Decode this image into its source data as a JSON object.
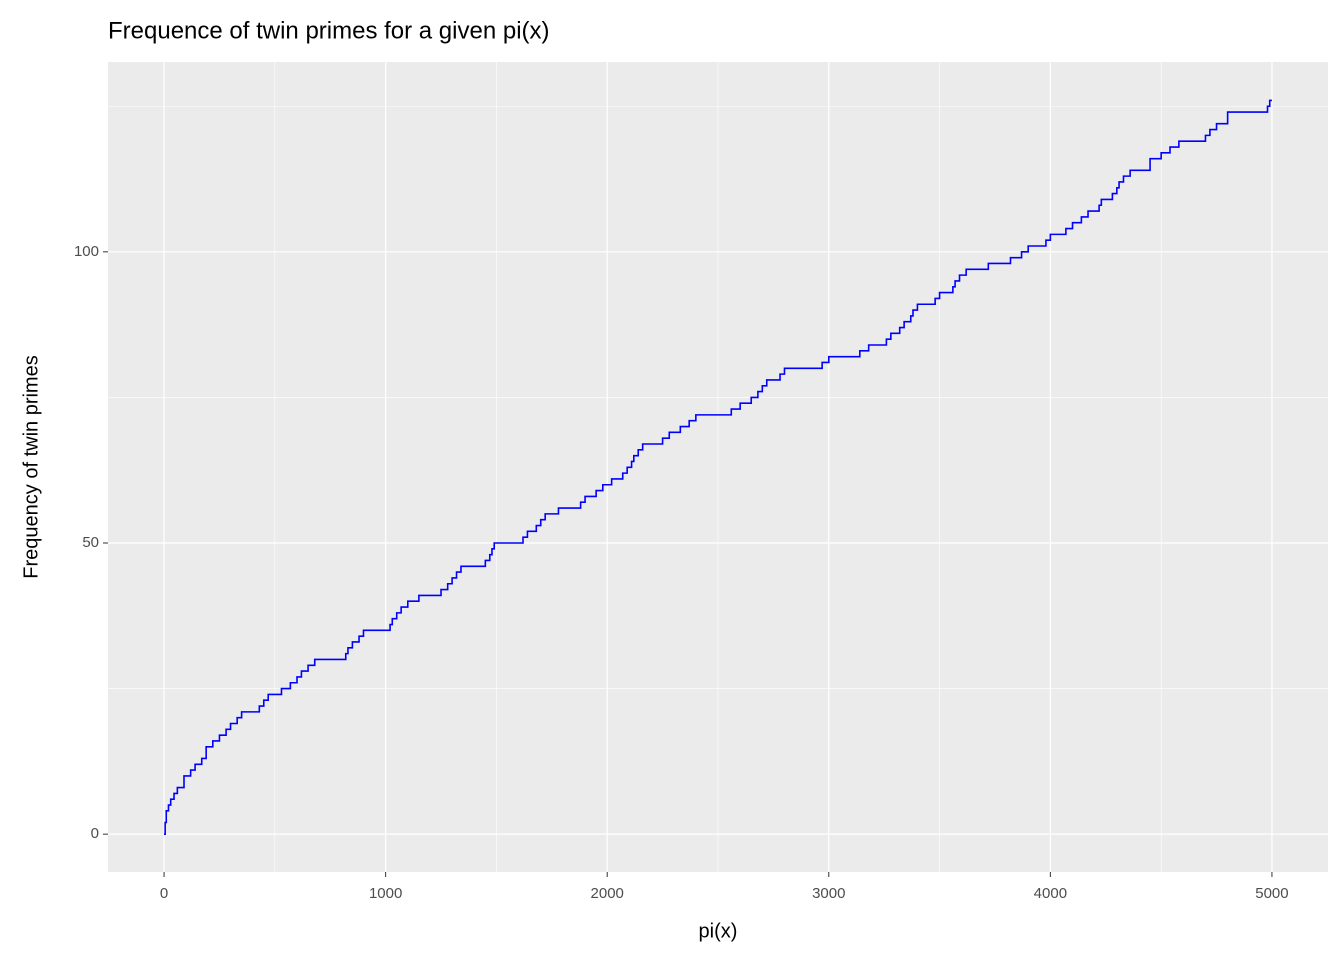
{
  "chart_data": {
    "type": "step",
    "title": "Frequence of twin primes for a given pi(x)",
    "x_label": "pi(x)",
    "y_label": "Frequency of twin primes",
    "series": [
      {
        "name": "twin primes",
        "color": "#0000ff",
        "x": [
          0,
          5,
          10,
          20,
          30,
          45,
          60,
          90,
          120,
          140,
          170,
          190,
          220,
          250,
          280,
          300,
          330,
          350,
          430,
          450,
          470,
          530,
          570,
          600,
          620,
          650,
          680,
          820,
          830,
          850,
          880,
          900,
          1020,
          1030,
          1050,
          1070,
          1100,
          1150,
          1250,
          1280,
          1300,
          1320,
          1340,
          1450,
          1470,
          1480,
          1490,
          1620,
          1640,
          1680,
          1700,
          1720,
          1780,
          1880,
          1900,
          1950,
          1980,
          2020,
          2070,
          2090,
          2110,
          2120,
          2140,
          2160,
          2250,
          2280,
          2330,
          2370,
          2400,
          2560,
          2600,
          2650,
          2680,
          2700,
          2720,
          2780,
          2800,
          2970,
          3000,
          3140,
          3180,
          3260,
          3280,
          3320,
          3340,
          3370,
          3380,
          3400,
          3480,
          3500,
          3560,
          3570,
          3590,
          3620,
          3720,
          3820,
          3870,
          3900,
          3980,
          4000,
          4070,
          4100,
          4140,
          4170,
          4220,
          4230,
          4280,
          4300,
          4310,
          4330,
          4360,
          4450,
          4500,
          4540,
          4580,
          4700,
          4720,
          4750,
          4800,
          4980,
          4990,
          5000
        ],
        "values": [
          0,
          2,
          4,
          5,
          6,
          7,
          8,
          10,
          11,
          12,
          13,
          15,
          16,
          17,
          18,
          19,
          20,
          21,
          22,
          23,
          24,
          25,
          26,
          27,
          28,
          29,
          30,
          31,
          32,
          33,
          34,
          35,
          36,
          37,
          38,
          39,
          40,
          41,
          42,
          43,
          44,
          45,
          46,
          47,
          48,
          49,
          50,
          51,
          52,
          53,
          54,
          55,
          56,
          57,
          58,
          59,
          60,
          61,
          62,
          63,
          64,
          65,
          66,
          67,
          68,
          69,
          70,
          71,
          72,
          73,
          74,
          75,
          76,
          77,
          78,
          79,
          80,
          81,
          82,
          83,
          84,
          85,
          86,
          87,
          88,
          89,
          90,
          91,
          92,
          93,
          94,
          95,
          96,
          97,
          98,
          99,
          100,
          101,
          102,
          103,
          104,
          105,
          106,
          107,
          108,
          109,
          110,
          111,
          112,
          113,
          114,
          116,
          117,
          118,
          119,
          120,
          121,
          122,
          124,
          125,
          126,
          126
        ]
      }
    ],
    "xlim": [
      -253,
      5253
    ],
    "ylim": [
      -6.5,
      132.6
    ],
    "xticks": [
      0,
      1000,
      2000,
      3000,
      4000,
      5000
    ],
    "yticks": [
      0,
      50,
      100
    ],
    "grid": true
  }
}
